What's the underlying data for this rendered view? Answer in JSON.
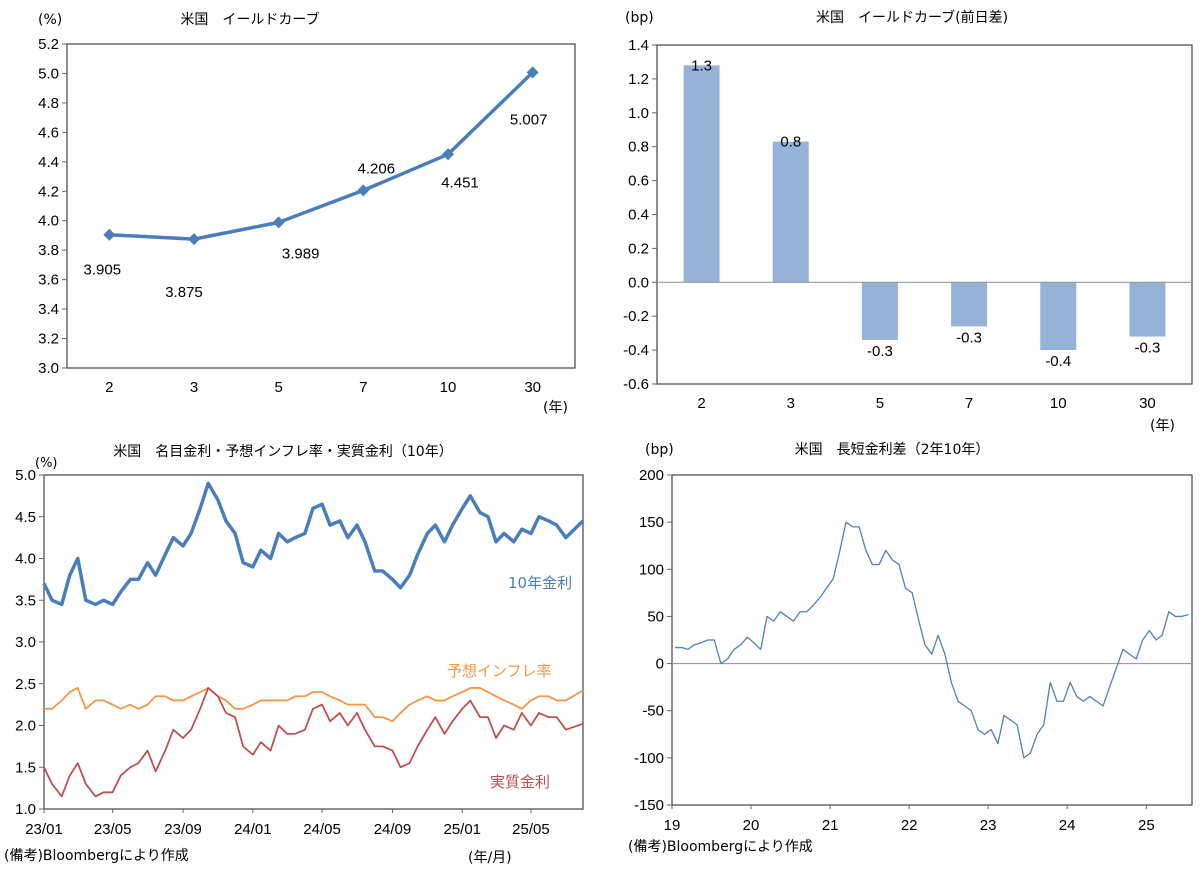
{
  "chart_data": [
    {
      "type": "line",
      "title": "米国　イールドカーブ",
      "ylabel": "(%)",
      "xlabel": "(年)",
      "categories": [
        "2",
        "3",
        "5",
        "7",
        "10",
        "30"
      ],
      "values": [
        3.905,
        3.875,
        3.989,
        4.206,
        4.451,
        5.007
      ],
      "data_labels": [
        "3.905",
        "3.875",
        "3.989",
        "4.206",
        "4.451",
        "5.007"
      ],
      "ylim": [
        3.0,
        5.2
      ],
      "yticks": [
        3.0,
        3.2,
        3.4,
        3.6,
        3.8,
        4.0,
        4.2,
        4.4,
        4.6,
        4.8,
        5.0,
        5.2
      ],
      "marker": "diamond",
      "color": "#4a7ebb",
      "grid": false
    },
    {
      "type": "bar",
      "title": "米国　イールドカーブ(前日差)",
      "ylabel": "(bp)",
      "xlabel": "(年)",
      "categories": [
        "2",
        "3",
        "5",
        "7",
        "10",
        "30"
      ],
      "values": [
        1.28,
        0.83,
        -0.34,
        -0.26,
        -0.4,
        -0.32
      ],
      "data_labels": [
        "1.3",
        "0.8",
        "-0.3",
        "-0.3",
        "-0.4",
        "-0.3"
      ],
      "ylim": [
        -0.6,
        1.4
      ],
      "yticks": [
        -0.6,
        -0.4,
        -0.2,
        0.0,
        0.2,
        0.4,
        0.6,
        0.8,
        1.0,
        1.2,
        1.4
      ],
      "color": "#95b3d7",
      "grid": false
    },
    {
      "type": "line",
      "title": "米国　名目金利・予想インフレ率・実質金利（10年）",
      "ylabel": "(%)",
      "xlabel": "(年/月)",
      "note": "(備考)Bloombergにより作成",
      "ylim": [
        1.0,
        5.0
      ],
      "yticks": [
        1.0,
        1.5,
        2.0,
        2.5,
        3.0,
        3.5,
        4.0,
        4.5,
        5.0
      ],
      "xticks": [
        "23/01",
        "23/05",
        "23/09",
        "24/01",
        "24/05",
        "24/09",
        "25/01",
        "25/05"
      ],
      "xlim": [
        "2023-01-01",
        "2025-07-31"
      ],
      "x": [
        "2023-01-01",
        "2023-01-15",
        "2023-02-01",
        "2023-02-15",
        "2023-03-01",
        "2023-03-15",
        "2023-04-01",
        "2023-04-15",
        "2023-05-01",
        "2023-05-15",
        "2023-06-01",
        "2023-06-15",
        "2023-07-01",
        "2023-07-15",
        "2023-08-01",
        "2023-08-15",
        "2023-09-01",
        "2023-09-15",
        "2023-10-01",
        "2023-10-15",
        "2023-11-01",
        "2023-11-15",
        "2023-12-01",
        "2023-12-15",
        "2024-01-01",
        "2024-01-15",
        "2024-02-01",
        "2024-02-15",
        "2024-03-01",
        "2024-03-15",
        "2024-04-01",
        "2024-04-15",
        "2024-05-01",
        "2024-05-15",
        "2024-06-01",
        "2024-06-15",
        "2024-07-01",
        "2024-07-15",
        "2024-08-01",
        "2024-08-15",
        "2024-09-01",
        "2024-09-15",
        "2024-10-01",
        "2024-10-15",
        "2024-11-01",
        "2024-11-15",
        "2024-12-01",
        "2024-12-15",
        "2025-01-01",
        "2025-01-15",
        "2025-02-01",
        "2025-02-15",
        "2025-03-01",
        "2025-03-15",
        "2025-04-01",
        "2025-04-15",
        "2025-05-01",
        "2025-05-15",
        "2025-06-01",
        "2025-06-15",
        "2025-07-01",
        "2025-07-31"
      ],
      "series": [
        {
          "name": "10年金利",
          "color": "#4a7ebb",
          "values": [
            3.7,
            3.5,
            3.45,
            3.8,
            4.0,
            3.5,
            3.45,
            3.5,
            3.45,
            3.6,
            3.75,
            3.75,
            3.95,
            3.8,
            4.05,
            4.25,
            4.15,
            4.3,
            4.6,
            4.9,
            4.7,
            4.45,
            4.3,
            3.95,
            3.9,
            4.1,
            4.0,
            4.3,
            4.2,
            4.25,
            4.3,
            4.6,
            4.65,
            4.4,
            4.45,
            4.25,
            4.4,
            4.2,
            3.85,
            3.85,
            3.75,
            3.65,
            3.8,
            4.05,
            4.3,
            4.4,
            4.2,
            4.4,
            4.6,
            4.75,
            4.55,
            4.5,
            4.2,
            4.3,
            4.2,
            4.35,
            4.3,
            4.5,
            4.45,
            4.4,
            4.25,
            4.45
          ]
        },
        {
          "name": "予想インフレ率",
          "color": "#f79646",
          "values": [
            2.2,
            2.2,
            2.3,
            2.4,
            2.45,
            2.2,
            2.3,
            2.3,
            2.25,
            2.2,
            2.25,
            2.2,
            2.25,
            2.35,
            2.35,
            2.3,
            2.3,
            2.35,
            2.4,
            2.45,
            2.35,
            2.3,
            2.2,
            2.2,
            2.25,
            2.3,
            2.3,
            2.3,
            2.3,
            2.35,
            2.35,
            2.4,
            2.4,
            2.35,
            2.3,
            2.25,
            2.25,
            2.25,
            2.1,
            2.1,
            2.05,
            2.15,
            2.25,
            2.3,
            2.35,
            2.3,
            2.3,
            2.35,
            2.4,
            2.45,
            2.45,
            2.4,
            2.35,
            2.3,
            2.25,
            2.2,
            2.3,
            2.35,
            2.35,
            2.3,
            2.3,
            2.42
          ]
        },
        {
          "name": "実質金利",
          "color": "#c0504d",
          "values": [
            1.5,
            1.3,
            1.15,
            1.4,
            1.55,
            1.3,
            1.15,
            1.2,
            1.2,
            1.4,
            1.5,
            1.55,
            1.7,
            1.45,
            1.7,
            1.95,
            1.85,
            1.95,
            2.2,
            2.45,
            2.35,
            2.15,
            2.1,
            1.75,
            1.65,
            1.8,
            1.7,
            2.0,
            1.9,
            1.9,
            1.95,
            2.2,
            2.25,
            2.05,
            2.15,
            2.0,
            2.15,
            1.95,
            1.75,
            1.75,
            1.7,
            1.5,
            1.55,
            1.75,
            1.95,
            2.1,
            1.9,
            2.05,
            2.2,
            2.3,
            2.1,
            2.1,
            1.85,
            2.0,
            1.95,
            2.15,
            2.0,
            2.15,
            2.1,
            2.1,
            1.95,
            2.02
          ]
        }
      ],
      "grid": false
    },
    {
      "type": "line",
      "title": "米国　長短金利差（2年10年）",
      "ylabel": "(bp)",
      "note": "(備考)Bloombergにより作成",
      "ylim": [
        -150,
        200
      ],
      "yticks": [
        -150,
        -100,
        -50,
        0,
        50,
        100,
        150,
        200
      ],
      "xticks": [
        "19",
        "20",
        "21",
        "22",
        "23",
        "24",
        "25"
      ],
      "xlim": [
        "2019-01-01",
        "2025-07-31"
      ],
      "x": [
        "2019-01",
        "2019-02",
        "2019-03",
        "2019-04",
        "2019-05",
        "2019-06",
        "2019-07",
        "2019-08",
        "2019-09",
        "2019-10",
        "2019-11",
        "2019-12",
        "2020-01",
        "2020-02",
        "2020-03",
        "2020-04",
        "2020-05",
        "2020-06",
        "2020-07",
        "2020-08",
        "2020-09",
        "2020-10",
        "2020-11",
        "2020-12",
        "2021-01",
        "2021-02",
        "2021-03",
        "2021-04",
        "2021-05",
        "2021-06",
        "2021-07",
        "2021-08",
        "2021-09",
        "2021-10",
        "2021-11",
        "2021-12",
        "2022-01",
        "2022-02",
        "2022-03",
        "2022-04",
        "2022-05",
        "2022-06",
        "2022-07",
        "2022-08",
        "2022-09",
        "2022-10",
        "2022-11",
        "2022-12",
        "2023-01",
        "2023-02",
        "2023-03",
        "2023-04",
        "2023-05",
        "2023-06",
        "2023-07",
        "2023-08",
        "2023-09",
        "2023-10",
        "2023-11",
        "2023-12",
        "2024-01",
        "2024-02",
        "2024-03",
        "2024-04",
        "2024-05",
        "2024-06",
        "2024-07",
        "2024-08",
        "2024-09",
        "2024-10",
        "2024-11",
        "2024-12",
        "2025-01",
        "2025-02",
        "2025-03",
        "2025-04",
        "2025-05",
        "2025-06",
        "2025-07"
      ],
      "series": [
        {
          "color": "#4f81bd",
          "values": [
            17,
            17,
            15,
            20,
            22,
            25,
            25,
            0,
            5,
            15,
            20,
            28,
            22,
            15,
            50,
            45,
            55,
            50,
            45,
            55,
            55,
            62,
            70,
            80,
            90,
            120,
            150,
            145,
            145,
            120,
            105,
            105,
            120,
            110,
            105,
            80,
            75,
            45,
            20,
            10,
            30,
            10,
            -20,
            -40,
            -45,
            -50,
            -70,
            -75,
            -70,
            -85,
            -55,
            -60,
            -65,
            -100,
            -95,
            -75,
            -65,
            -20,
            -40,
            -40,
            -20,
            -35,
            -40,
            -35,
            -40,
            -45,
            -25,
            -5,
            15,
            10,
            5,
            25,
            35,
            25,
            30,
            55,
            50,
            50,
            52
          ]
        }
      ],
      "grid": false
    }
  ]
}
